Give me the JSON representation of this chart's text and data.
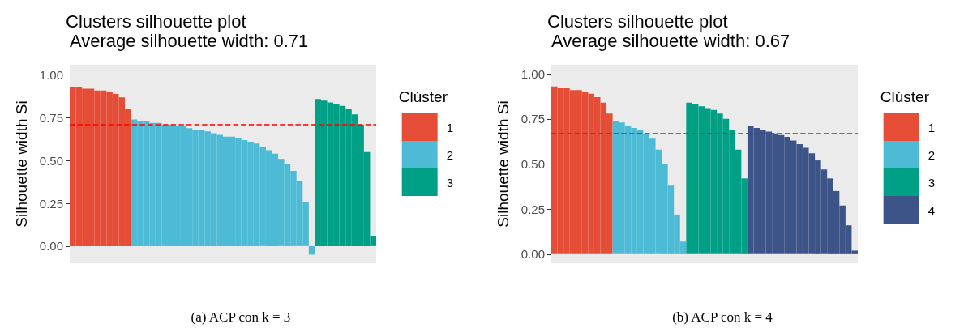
{
  "chart_data": [
    {
      "type": "bar",
      "title": "Clusters silhouette plot",
      "subtitle": " Average silhouette width: 0.71",
      "ylabel": "Silhouette width Si",
      "legend_title": "Clúster",
      "legend": "right",
      "tick_labels": "y",
      "annotations": [
        "(a) ACP con k = 3"
      ],
      "categories": [
        null,
        null,
        null,
        null,
        null,
        null,
        null,
        null,
        null,
        null,
        null,
        null,
        null,
        null,
        null,
        null,
        null,
        null,
        null,
        null,
        null,
        null,
        null,
        null,
        null,
        null,
        null,
        null,
        null,
        null,
        null,
        null,
        null,
        null,
        null,
        null,
        null,
        null,
        null,
        null,
        null,
        null,
        null,
        null,
        null,
        null,
        null,
        null,
        null,
        null
      ],
      "series": [
        {
          "name": "1",
          "color": "#e64d36",
          "values": [
            0.93,
            0.93,
            0.92,
            0.92,
            0.91,
            0.91,
            0.9,
            0.89,
            0.87,
            0.8,
            null,
            null,
            null,
            null,
            null,
            null,
            null,
            null,
            null,
            null,
            null,
            null,
            null,
            null,
            null,
            null,
            null,
            null,
            null,
            null,
            null,
            null,
            null,
            null,
            null,
            null,
            null,
            null,
            null,
            null,
            null,
            null,
            null,
            null,
            null,
            null,
            null,
            null,
            null,
            null
          ]
        },
        {
          "name": "2",
          "color": "#4dbbd5",
          "values": [
            null,
            null,
            null,
            null,
            null,
            null,
            null,
            null,
            null,
            null,
            0.74,
            0.73,
            0.73,
            0.72,
            0.72,
            0.71,
            0.71,
            0.7,
            0.7,
            0.69,
            0.68,
            0.68,
            0.67,
            0.66,
            0.65,
            0.64,
            0.64,
            0.63,
            0.62,
            0.61,
            0.6,
            0.58,
            0.56,
            0.54,
            0.51,
            0.48,
            0.44,
            0.38,
            0.26,
            -0.05,
            null,
            null,
            null,
            null,
            null,
            null,
            null,
            null,
            null,
            null
          ]
        },
        {
          "name": "3",
          "color": "#00a087",
          "values": [
            null,
            null,
            null,
            null,
            null,
            null,
            null,
            null,
            null,
            null,
            null,
            null,
            null,
            null,
            null,
            null,
            null,
            null,
            null,
            null,
            null,
            null,
            null,
            null,
            null,
            null,
            null,
            null,
            null,
            null,
            null,
            null,
            null,
            null,
            null,
            null,
            null,
            null,
            null,
            null,
            0.86,
            0.85,
            0.84,
            0.83,
            0.82,
            0.8,
            0.77,
            0.71,
            0.55,
            0.06
          ]
        }
      ],
      "ylim": [
        -0.1,
        1.06
      ],
      "yticks": [
        {
          "value": 0,
          "label": "0.00"
        },
        {
          "value": 0.25,
          "label": "0.25"
        },
        {
          "value": 0.5,
          "label": "0.50"
        },
        {
          "value": 0.75,
          "label": "0.75"
        },
        {
          "value": 1,
          "label": "1.00"
        }
      ],
      "ref_lines": [
        {
          "axis": "y",
          "value": 0.71,
          "color": "#ff0000",
          "line_style": "dashed"
        }
      ]
    },
    {
      "type": "bar",
      "title": "Clusters silhouette plot",
      "subtitle": " Average silhouette width: 0.67",
      "ylabel": "Silhouette width Si",
      "legend_title": "Clúster",
      "legend": "right",
      "tick_labels": "y",
      "annotations": [
        "(b) ACP con k = 4"
      ],
      "categories": [
        null,
        null,
        null,
        null,
        null,
        null,
        null,
        null,
        null,
        null,
        null,
        null,
        null,
        null,
        null,
        null,
        null,
        null,
        null,
        null,
        null,
        null,
        null,
        null,
        null,
        null,
        null,
        null,
        null,
        null,
        null,
        null,
        null,
        null,
        null,
        null,
        null,
        null,
        null,
        null,
        null,
        null,
        null,
        null,
        null,
        null,
        null,
        null,
        null,
        null
      ],
      "series": [
        {
          "name": "1",
          "color": "#e64d36",
          "values": [
            0.93,
            0.92,
            0.92,
            0.91,
            0.91,
            0.9,
            0.89,
            0.87,
            0.84,
            0.78,
            null,
            null,
            null,
            null,
            null,
            null,
            null,
            null,
            null,
            null,
            null,
            null,
            null,
            null,
            null,
            null,
            null,
            null,
            null,
            null,
            null,
            null,
            null,
            null,
            null,
            null,
            null,
            null,
            null,
            null,
            null,
            null,
            null,
            null,
            null,
            null,
            null,
            null,
            null,
            null
          ]
        },
        {
          "name": "2",
          "color": "#4dbbd5",
          "values": [
            null,
            null,
            null,
            null,
            null,
            null,
            null,
            null,
            null,
            null,
            0.74,
            0.73,
            0.71,
            0.7,
            0.69,
            0.67,
            0.64,
            0.58,
            0.5,
            0.38,
            0.22,
            0.07,
            null,
            null,
            null,
            null,
            null,
            null,
            null,
            null,
            null,
            null,
            null,
            null,
            null,
            null,
            null,
            null,
            null,
            null,
            null,
            null,
            null,
            null,
            null,
            null,
            null,
            null,
            null,
            null
          ]
        },
        {
          "name": "3",
          "color": "#00a087",
          "values": [
            null,
            null,
            null,
            null,
            null,
            null,
            null,
            null,
            null,
            null,
            null,
            null,
            null,
            null,
            null,
            null,
            null,
            null,
            null,
            null,
            null,
            null,
            0.84,
            0.83,
            0.82,
            0.81,
            0.8,
            0.78,
            0.75,
            0.69,
            0.58,
            0.42,
            null,
            null,
            null,
            null,
            null,
            null,
            null,
            null,
            null,
            null,
            null,
            null,
            null,
            null,
            null,
            null,
            null,
            null
          ]
        },
        {
          "name": "4",
          "color": "#3c5488",
          "values": [
            null,
            null,
            null,
            null,
            null,
            null,
            null,
            null,
            null,
            null,
            null,
            null,
            null,
            null,
            null,
            null,
            null,
            null,
            null,
            null,
            null,
            null,
            null,
            null,
            null,
            null,
            null,
            null,
            null,
            null,
            null,
            null,
            0.71,
            0.7,
            0.69,
            0.68,
            0.67,
            0.66,
            0.65,
            0.63,
            0.61,
            0.59,
            0.56,
            0.52,
            0.47,
            0.42,
            0.35,
            0.27,
            0.16,
            0.02
          ]
        }
      ],
      "ylim": [
        -0.05,
        1.05
      ],
      "yticks": [
        {
          "value": 0,
          "label": "0.00"
        },
        {
          "value": 0.25,
          "label": "0.25"
        },
        {
          "value": 0.5,
          "label": "0.50"
        },
        {
          "value": 0.75,
          "label": "0.75"
        },
        {
          "value": 1,
          "label": "1.00"
        }
      ],
      "ref_lines": [
        {
          "axis": "y",
          "value": 0.67,
          "color": "#ff0000",
          "line_style": "dashed"
        }
      ]
    }
  ]
}
